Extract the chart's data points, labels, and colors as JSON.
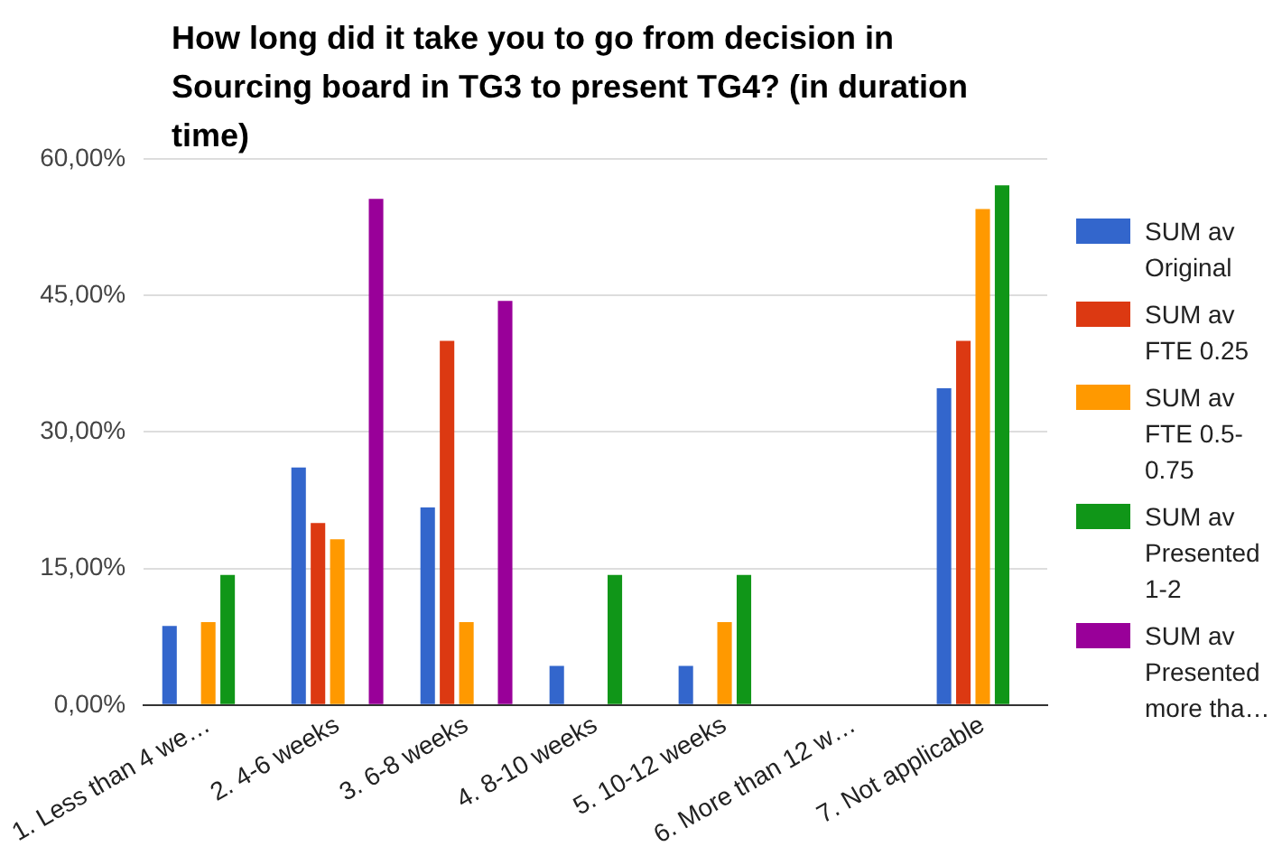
{
  "chart_data": {
    "type": "bar",
    "title": "How long did it take you to go from decision in Sourcing board in TG3 to present TG4? (in duration time)",
    "categories": [
      "1. Less than 4 we…",
      "2. 4-6 weeks",
      "3. 6-8 weeks",
      "4. 8-10 weeks",
      "5. 10-12 weeks",
      "6. More than 12 w…",
      "7. Not applicable"
    ],
    "series": [
      {
        "name": "SUM av Original",
        "color": "#3366cc",
        "values": [
          8.7,
          26.1,
          21.7,
          4.3,
          4.3,
          0,
          34.8
        ]
      },
      {
        "name": "SUM av FTE 0.25",
        "color": "#dc3912",
        "values": [
          0,
          20,
          40,
          0,
          0,
          0,
          40
        ]
      },
      {
        "name": "SUM av FTE 0.5-0.75",
        "color": "#ff9900",
        "values": [
          9.1,
          18.2,
          9.1,
          0,
          9.1,
          0,
          54.5
        ]
      },
      {
        "name": "SUM av Presented 1-2",
        "color": "#109618",
        "values": [
          14.3,
          0,
          0,
          14.3,
          14.3,
          0,
          57.1
        ]
      },
      {
        "name": "SUM av Presented more tha…",
        "color": "#990099",
        "values": [
          0,
          55.6,
          44.4,
          0,
          0,
          0,
          0
        ]
      }
    ],
    "ylim": [
      0,
      60
    ],
    "yticks": [
      {
        "value": 0,
        "label": "0,00%"
      },
      {
        "value": 15,
        "label": "15,00%"
      },
      {
        "value": 30,
        "label": "30,00%"
      },
      {
        "value": 45,
        "label": "45,00%"
      },
      {
        "value": 60,
        "label": "60,00%"
      }
    ],
    "grid": "y",
    "legend": "right"
  }
}
